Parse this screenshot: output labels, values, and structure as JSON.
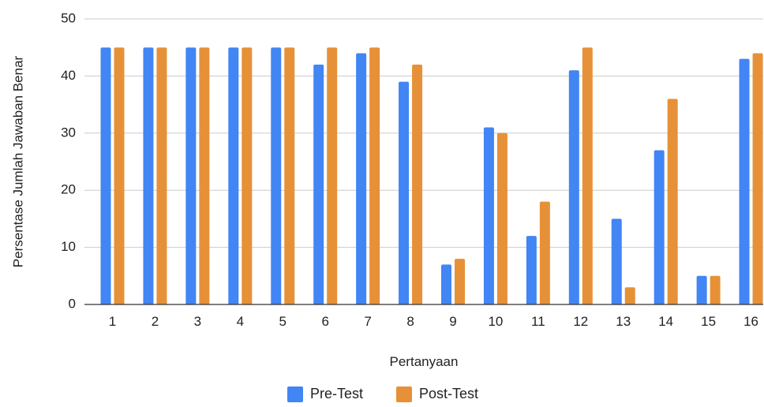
{
  "chart_data": {
    "type": "bar",
    "title": "",
    "xlabel": "Pertanyaan",
    "ylabel": "Persentase Jumlah Jawaban Benar",
    "ylim": [
      0,
      50
    ],
    "yticks": [
      "0",
      "10",
      "20",
      "30",
      "40",
      "50"
    ],
    "categories": [
      "1",
      "2",
      "3",
      "4",
      "5",
      "6",
      "7",
      "8",
      "9",
      "10",
      "11",
      "12",
      "13",
      "14",
      "15",
      "16"
    ],
    "series": [
      {
        "name": "Pre-Test",
        "color": "#4285f4",
        "values": [
          45,
          45,
          45,
          45,
          45,
          42,
          44,
          39,
          7,
          31,
          12,
          41,
          15,
          27,
          5,
          43
        ]
      },
      {
        "name": "Post-Test",
        "color": "#e69138",
        "values": [
          45,
          45,
          45,
          45,
          45,
          45,
          45,
          42,
          8,
          30,
          18,
          45,
          3,
          36,
          5,
          44
        ]
      }
    ],
    "grid": true,
    "legend_position": "bottom"
  }
}
